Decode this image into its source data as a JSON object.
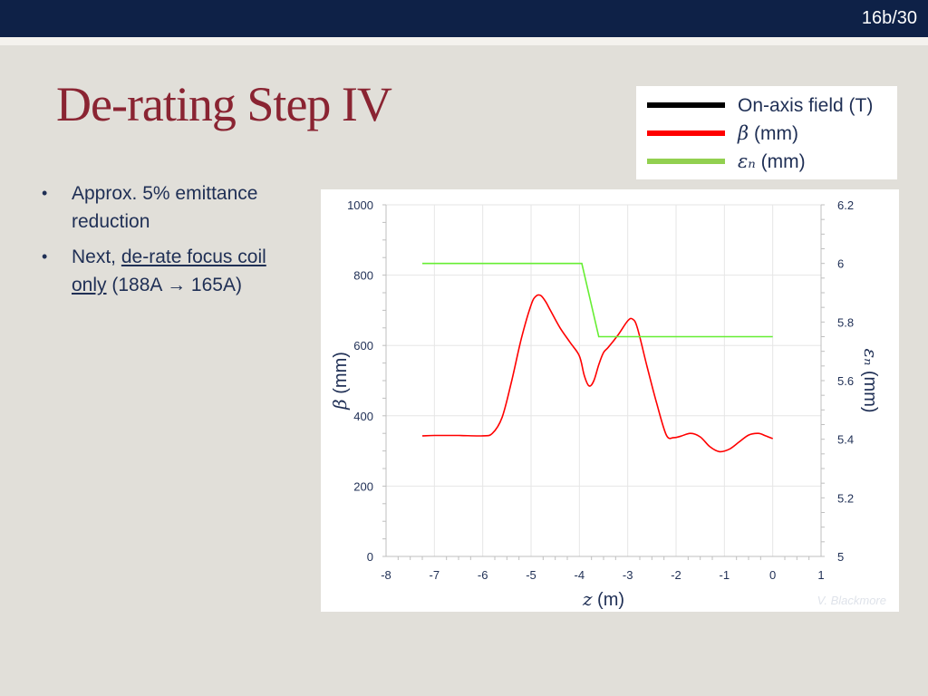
{
  "slide": {
    "number": "16b/30",
    "title": "De-rating Step IV"
  },
  "bullets": [
    {
      "text": "Approx. 5% emittance reduction"
    },
    {
      "prefix": "Next, ",
      "underline": "de-rate focus coil only",
      "suffix": " (188A → 165A)"
    }
  ],
  "legend": {
    "items": [
      {
        "symbol": "",
        "label": "On-axis field (T)",
        "color": "#000000"
      },
      {
        "symbol": "β",
        "label": " (mm)",
        "color": "#ff0000"
      },
      {
        "symbol": "εₙ",
        "label": " (mm)",
        "color": "#92d050"
      }
    ]
  },
  "chart_data": {
    "type": "line",
    "title": "",
    "xlabel_symbol": "z",
    "xlabel_unit": " (m)",
    "ylabel_symbol": "β",
    "ylabel_unit": " (mm)",
    "y2label_symbol": "εₙ",
    "y2label_unit": " (mm)",
    "xlim": [
      -8,
      1
    ],
    "ylim": [
      0,
      1000
    ],
    "y2lim": [
      5,
      6.2
    ],
    "xticks": [
      "-8",
      "-7",
      "-6",
      "-5",
      "-4",
      "-3",
      "-2",
      "-1",
      "0",
      "1"
    ],
    "yticks": [
      "0",
      "200",
      "400",
      "600",
      "800",
      "1000"
    ],
    "y2ticks": [
      "5",
      "5.2",
      "5.4",
      "5.6",
      "5.8",
      "6",
      "6.2"
    ],
    "grid": true,
    "series": [
      {
        "name": "β (mm)",
        "axis": "left",
        "color": "#ff0000",
        "x": [
          -7.25,
          -7.0,
          -6.5,
          -6.0,
          -5.8,
          -5.6,
          -5.4,
          -5.2,
          -5.0,
          -4.9,
          -4.8,
          -4.7,
          -4.6,
          -4.4,
          -4.2,
          -4.0,
          -3.9,
          -3.8,
          -3.7,
          -3.6,
          -3.5,
          -3.4,
          -3.2,
          -3.0,
          -2.9,
          -2.8,
          -2.6,
          -2.4,
          -2.2,
          -2.05,
          -1.9,
          -1.7,
          -1.5,
          -1.3,
          -1.1,
          -0.9,
          -0.7,
          -0.5,
          -0.3,
          -0.15,
          0.0
        ],
        "y": [
          343,
          344,
          344,
          343,
          350,
          395,
          500,
          620,
          715,
          740,
          742,
          725,
          700,
          650,
          610,
          570,
          515,
          485,
          500,
          545,
          580,
          595,
          630,
          670,
          675,
          650,
          540,
          435,
          345,
          338,
          342,
          350,
          340,
          312,
          298,
          305,
          325,
          345,
          350,
          343,
          335
        ]
      },
      {
        "name": "εₙ (mm)",
        "axis": "right",
        "color": "#66ee33",
        "x": [
          -7.25,
          -3.95,
          -3.6,
          0.0
        ],
        "y": [
          6.0,
          6.0,
          5.75,
          5.75
        ]
      }
    ]
  },
  "credit": "V. Blackmore"
}
